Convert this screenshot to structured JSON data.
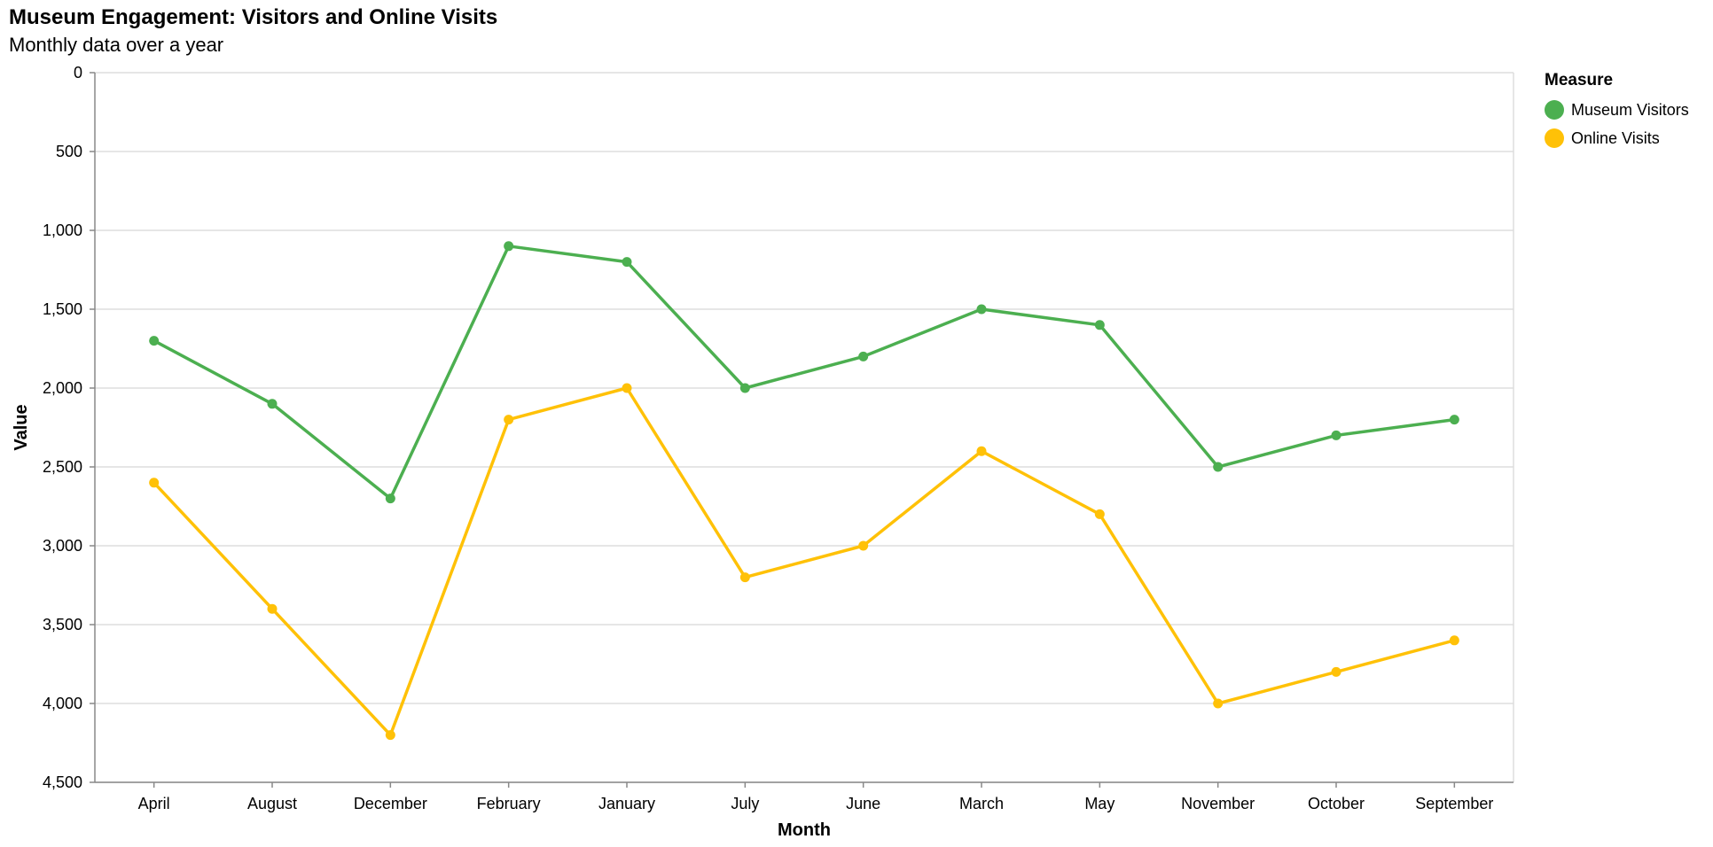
{
  "chart_data": {
    "type": "line",
    "title": "Museum Engagement: Visitors and Online Visits",
    "subtitle": "Monthly data over a year",
    "xlabel": "Month",
    "ylabel": "Value",
    "categories": [
      "April",
      "August",
      "December",
      "February",
      "January",
      "July",
      "June",
      "March",
      "May",
      "November",
      "October",
      "September"
    ],
    "ylim": [
      0,
      4500
    ],
    "y_reversed": true,
    "yticks": [
      0,
      500,
      1000,
      1500,
      2000,
      2500,
      3000,
      3500,
      4000,
      4500
    ],
    "ytick_labels": [
      "0",
      "500",
      "1,000",
      "1,500",
      "2,000",
      "2,500",
      "3,000",
      "3,500",
      "4,000",
      "4,500"
    ],
    "grid": true,
    "legend": {
      "title": "Measure",
      "placement": "right"
    },
    "series": [
      {
        "name": "Museum Visitors",
        "color": "#4caf50",
        "values": [
          1700,
          2100,
          2700,
          1100,
          1200,
          2000,
          1800,
          1500,
          1600,
          2500,
          2300,
          2200
        ]
      },
      {
        "name": "Online Visits",
        "color": "#ffc107",
        "values": [
          2600,
          3400,
          4200,
          2200,
          2000,
          3200,
          3000,
          2400,
          2800,
          4000,
          3800,
          3600
        ]
      }
    ]
  }
}
